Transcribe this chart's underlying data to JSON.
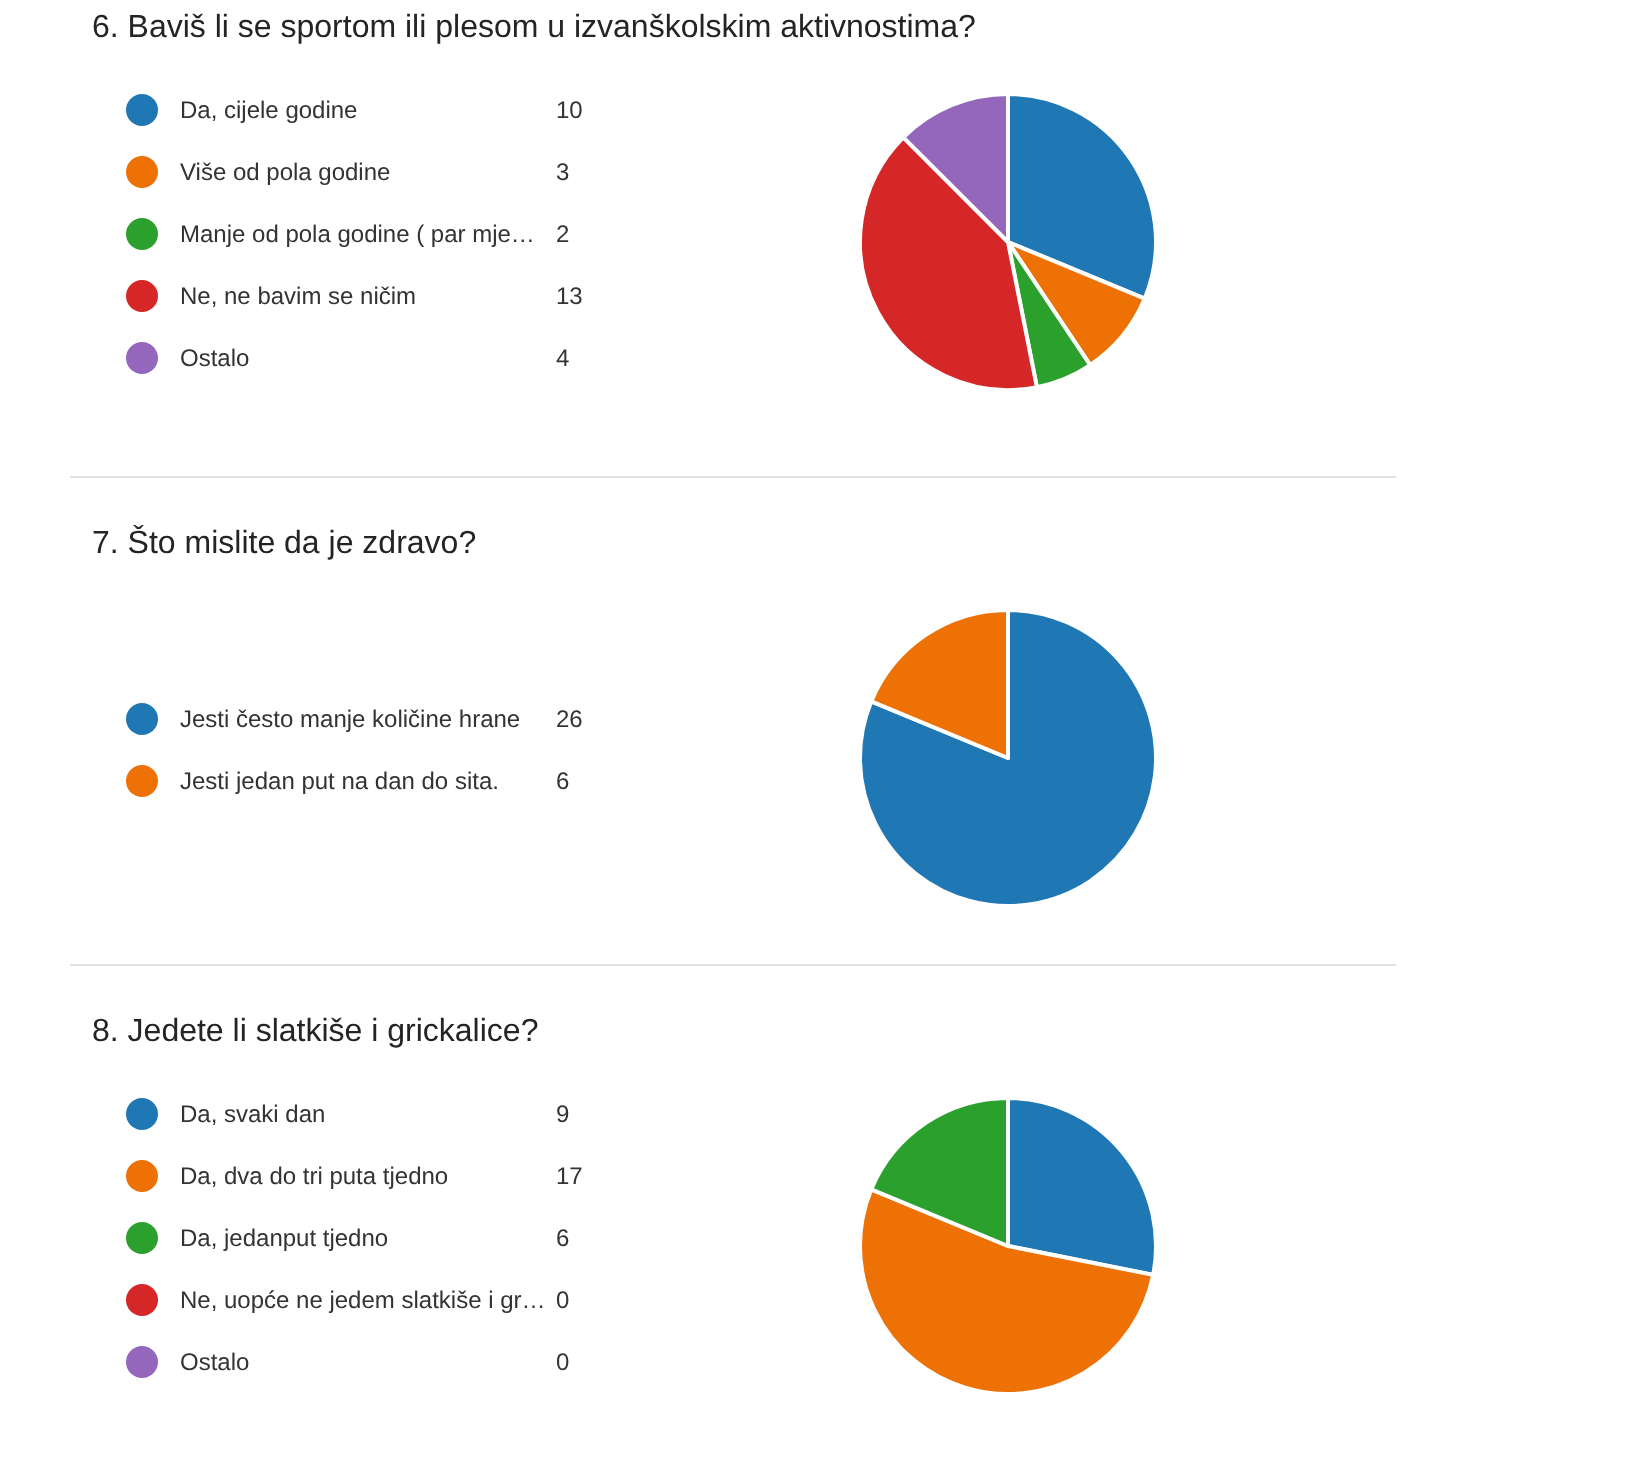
{
  "chart_data": [
    {
      "type": "pie",
      "title": "6. Baviš li se sportom ili plesom u izvanškolskim aktivnostima?",
      "categories": [
        "Da, cijele godine",
        "Više od pola godine",
        "Manje od pola godine ( par mje…",
        "Ne, ne bavim se ničim",
        "Ostalo"
      ],
      "values": [
        10,
        3,
        2,
        13,
        4
      ],
      "value_labels": [
        "10",
        "3",
        "2",
        "13",
        "4"
      ],
      "colors": [
        "#1f77b4",
        "#ed7105",
        "#2ca02c",
        "#d62728",
        "#9467bd"
      ],
      "legend": "left"
    },
    {
      "type": "pie",
      "title": "7. Što mislite da je zdravo?",
      "categories": [
        "Jesti često manje količine hrane",
        "Jesti jedan put na dan do sita."
      ],
      "values": [
        26,
        6
      ],
      "value_labels": [
        "26",
        "6"
      ],
      "colors": [
        "#1f77b4",
        "#ed7105"
      ],
      "legend": "left"
    },
    {
      "type": "pie",
      "title": "8. Jedete li slatkiše i grickalice?",
      "categories": [
        "Da, svaki dan",
        "Da, dva do tri puta tjedno",
        "Da, jedanput tjedno",
        "Ne, uopće ne jedem slatkiše i gr…",
        "Ostalo"
      ],
      "values": [
        9,
        17,
        6,
        0,
        0
      ],
      "value_labels": [
        "9",
        "17",
        "6",
        "0",
        "0"
      ],
      "colors": [
        "#1f77b4",
        "#ed7105",
        "#2ca02c",
        "#d62728",
        "#9467bd"
      ],
      "legend": "left"
    }
  ]
}
